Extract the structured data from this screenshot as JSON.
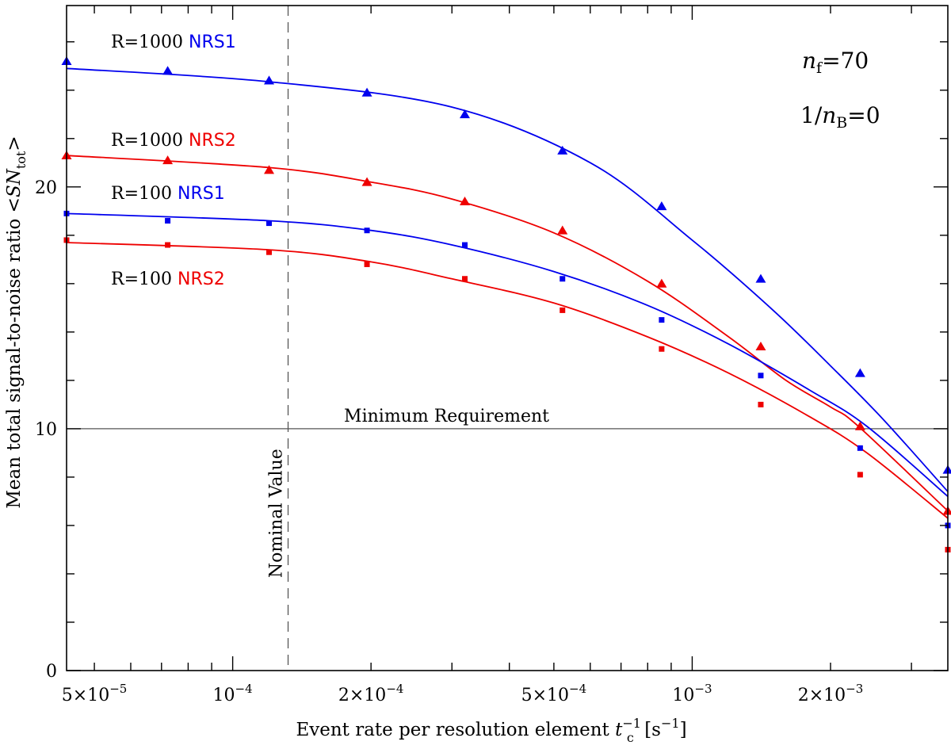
{
  "chart_data": {
    "type": "line",
    "xscale": "log",
    "xlim": [
      4.35e-05,
      0.0036
    ],
    "ylim": [
      0,
      27.5
    ],
    "xlabel": "Event rate per resolution element t_c^-1 [s^-1]",
    "xlabel_parts": {
      "main": "Event rate per resolution element ",
      "var": "t",
      "sub": "c",
      "sup": "−1",
      "unit_open": " [s",
      "unit_sup": "−1",
      "unit_close": "]"
    },
    "ylabel": "Mean total signal-to-noise ratio <SN_tot>",
    "ylabel_parts": {
      "main": "Mean total signal-to-noise ratio <",
      "var": "SN",
      "sub": "tot",
      "close": ">"
    },
    "x_ticks": [
      {
        "value": 5e-05,
        "mantissa": "5×10",
        "exp": "−5"
      },
      {
        "value": 0.0001,
        "mantissa": "10",
        "exp": "−4"
      },
      {
        "value": 0.0002,
        "mantissa": "2×10",
        "exp": "−4"
      },
      {
        "value": 0.0005,
        "mantissa": "5×10",
        "exp": "−4"
      },
      {
        "value": 0.001,
        "mantissa": "10",
        "exp": "−3"
      },
      {
        "value": 0.002,
        "mantissa": "2×10",
        "exp": "−3"
      }
    ],
    "y_ticks": [
      {
        "value": 0,
        "label": "0"
      },
      {
        "value": 10,
        "label": "10"
      },
      {
        "value": 20,
        "label": "20"
      }
    ],
    "minimum_requirement": {
      "value": 10,
      "label": "Minimum Requirement"
    },
    "nominal_value": {
      "value": 0.000132,
      "label": "Nominal Value"
    },
    "parameters": {
      "nf": {
        "var": "n",
        "sub": "f",
        "value": "=70"
      },
      "nb": {
        "prefix": "1/",
        "var": "n",
        "sub": "B",
        "value": "=0"
      }
    },
    "series": [
      {
        "name": "R=1000 NRS1",
        "label_prefix": "R=1000",
        "label_detector": "NRS1",
        "color": "#0000ee",
        "marker": "triangle",
        "points_x": [
          4.35e-05,
          7.22e-05,
          0.00012,
          0.000196,
          0.00032,
          0.000522,
          0.000858,
          0.00141,
          0.00232,
          0.0036
        ],
        "points_y": [
          25.2,
          24.8,
          24.4,
          23.9,
          23.0,
          21.5,
          19.2,
          16.2,
          12.3,
          8.3
        ],
        "curve_x": [
          4.35e-05,
          0.00012,
          0.0003,
          0.0006,
          0.001,
          0.0015,
          0.002,
          0.0026,
          0.0036
        ],
        "curve_y": [
          24.9,
          24.35,
          23.3,
          21.0,
          17.8,
          14.9,
          12.6,
          10.4,
          7.4
        ]
      },
      {
        "name": "R=1000 NRS2",
        "label_prefix": "R=1000",
        "label_detector": "NRS2",
        "color": "#ee0000",
        "marker": "triangle",
        "points_x": [
          4.35e-05,
          7.22e-05,
          0.00012,
          0.000196,
          0.00032,
          0.000522,
          0.000858,
          0.00141,
          0.00232,
          0.0036
        ],
        "points_y": [
          21.3,
          21.1,
          20.7,
          20.2,
          19.4,
          18.2,
          16.0,
          13.4,
          10.1,
          6.6
        ],
        "curve_x": [
          4.35e-05,
          0.00012,
          0.0002,
          0.0003,
          0.0005,
          0.0008,
          0.0012,
          0.0016,
          0.002,
          0.0023,
          0.0036
        ],
        "curve_y": [
          21.3,
          20.8,
          20.2,
          19.5,
          18.1,
          16.1,
          13.8,
          12.0,
          10.9,
          10.1,
          6.6
        ]
      },
      {
        "name": "R=100 NRS1",
        "label_prefix": "R=100",
        "label_detector": "NRS1",
        "color": "#0000ee",
        "marker": "square",
        "points_x": [
          4.35e-05,
          7.22e-05,
          0.00012,
          0.000196,
          0.00032,
          0.000522,
          0.000858,
          0.00141,
          0.00232,
          0.0036
        ],
        "points_y": [
          18.9,
          18.6,
          18.5,
          18.2,
          17.6,
          16.2,
          14.5,
          12.2,
          9.2,
          6.0
        ],
        "curve_x": [
          4.35e-05,
          0.00012,
          0.0002,
          0.0003,
          0.0005,
          0.0008,
          0.0012,
          0.0018,
          0.0024,
          0.0036
        ],
        "curve_y": [
          18.9,
          18.6,
          18.2,
          17.6,
          16.5,
          15.1,
          13.5,
          11.6,
          10.1,
          7.2
        ]
      },
      {
        "name": "R=100 NRS2",
        "label_prefix": "R=100",
        "label_detector": "NRS2",
        "color": "#ee0000",
        "marker": "square",
        "points_x": [
          4.35e-05,
          7.22e-05,
          0.00012,
          0.000196,
          0.00032,
          0.000522,
          0.000858,
          0.00141,
          0.00232,
          0.0036
        ],
        "points_y": [
          17.8,
          17.6,
          17.3,
          16.8,
          16.2,
          14.9,
          13.3,
          11.0,
          8.1,
          5.0
        ],
        "curve_x": [
          4.35e-05,
          0.00012,
          0.0002,
          0.0003,
          0.0005,
          0.0008,
          0.0012,
          0.0018,
          0.0024,
          0.0036
        ],
        "curve_y": [
          17.7,
          17.4,
          16.9,
          16.2,
          15.2,
          13.8,
          12.3,
          10.5,
          9.0,
          6.3
        ]
      }
    ]
  }
}
